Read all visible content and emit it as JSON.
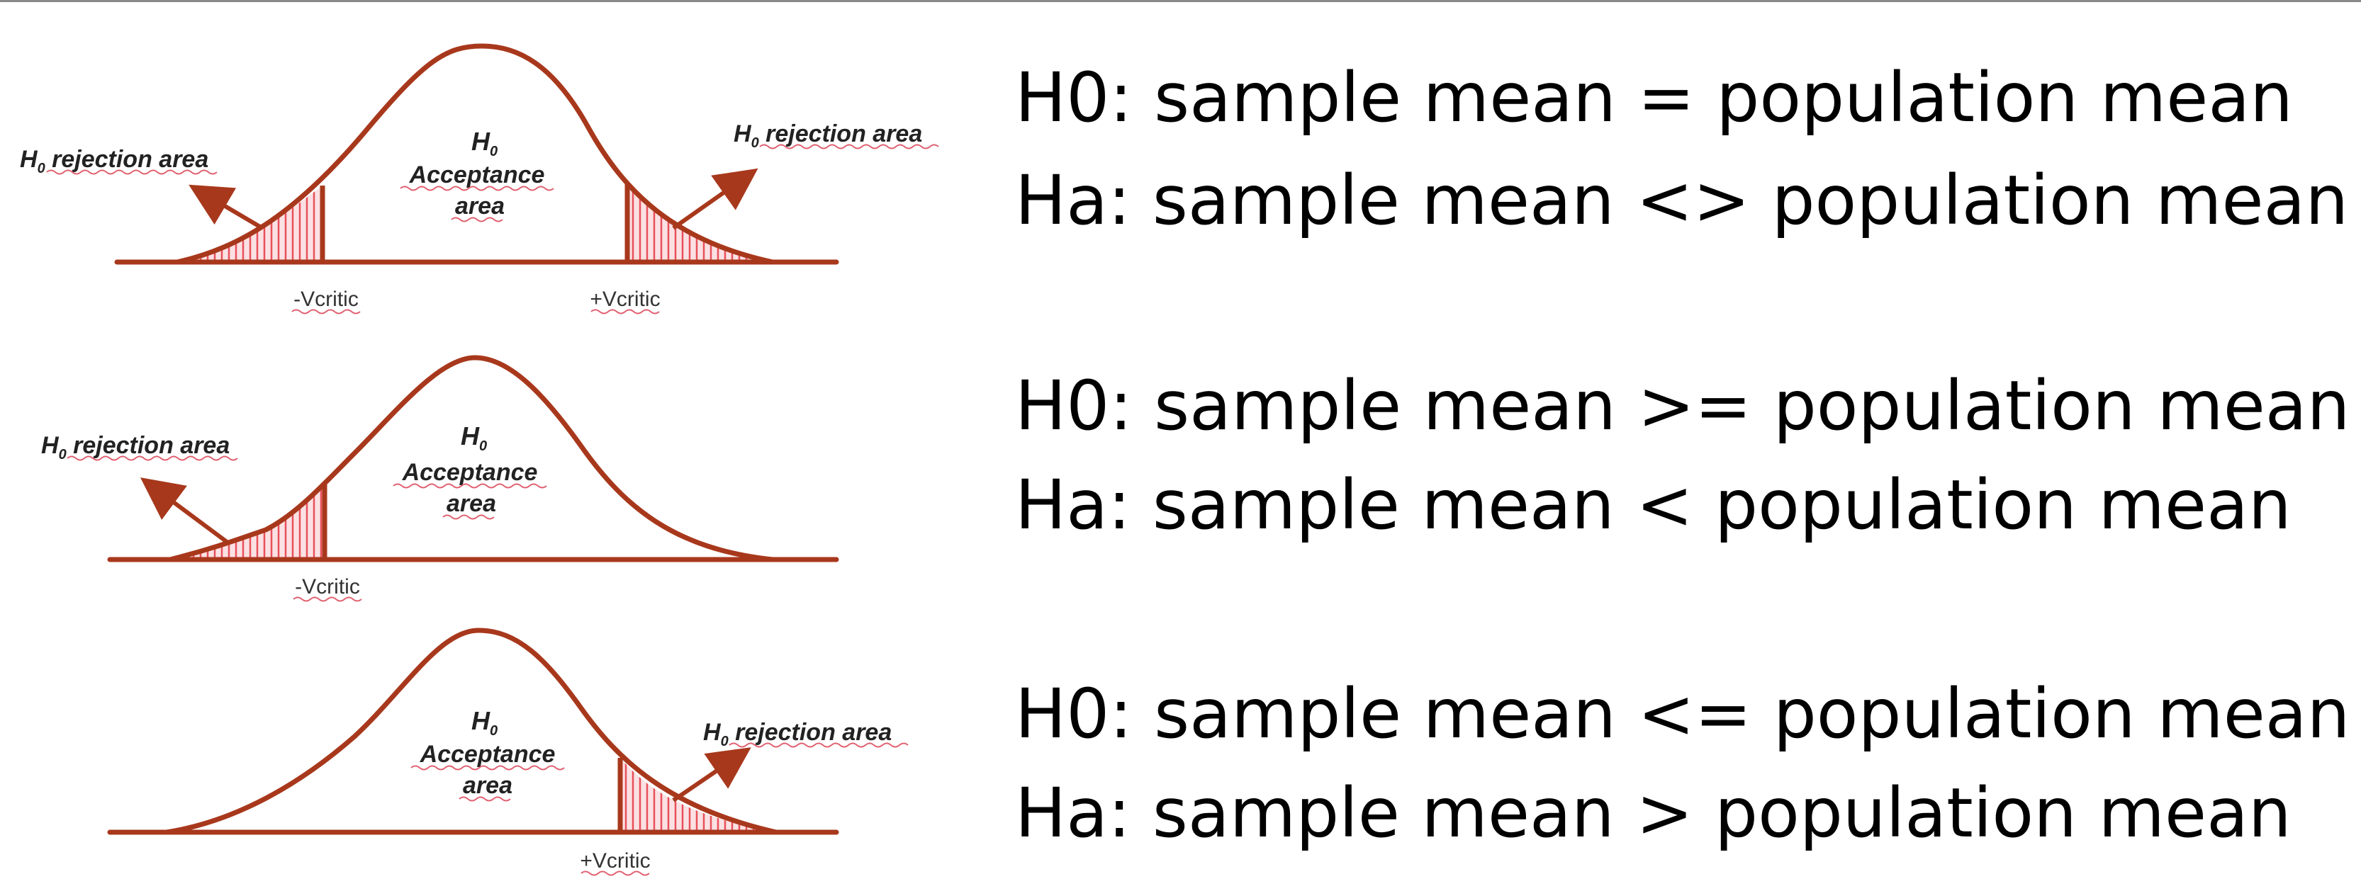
{
  "diagrams": [
    {
      "type": "two-tailed",
      "acceptance": {
        "h": "H",
        "sub": "0",
        "line1": "Acceptance",
        "line2": "area"
      },
      "rejection_left": {
        "h": "H",
        "sub": "0",
        "text": " rejection area"
      },
      "rejection_right": {
        "h": "H",
        "sub": "0",
        "text": " rejection area"
      },
      "crit_left": "-Vcritic",
      "crit_right": "+Vcritic"
    },
    {
      "type": "left-tailed",
      "acceptance": {
        "h": "H",
        "sub": "0",
        "line1": "Acceptance",
        "line2": "area"
      },
      "rejection_left": {
        "h": "H",
        "sub": "0",
        "text": " rejection area"
      },
      "crit_left": "-Vcritic"
    },
    {
      "type": "right-tailed",
      "acceptance": {
        "h": "H",
        "sub": "0",
        "line1": "Acceptance",
        "line2": "area"
      },
      "rejection_right": {
        "h": "H",
        "sub": "0",
        "text": " rejection area"
      },
      "crit_right": "+Vcritic"
    }
  ],
  "hypotheses": [
    {
      "h0": "H0: sample mean = population mean",
      "ha": "Ha: sample mean <> population mean"
    },
    {
      "h0": "H0: sample mean >= population mean",
      "ha": "Ha: sample mean < population mean"
    },
    {
      "h0": "H0: sample mean <= population mean",
      "ha": "Ha: sample mean > population mean"
    }
  ],
  "colors": {
    "curve": "#a8381c",
    "tail_hatch": "#e8505a",
    "tail_fill": "#fbe1e3"
  }
}
